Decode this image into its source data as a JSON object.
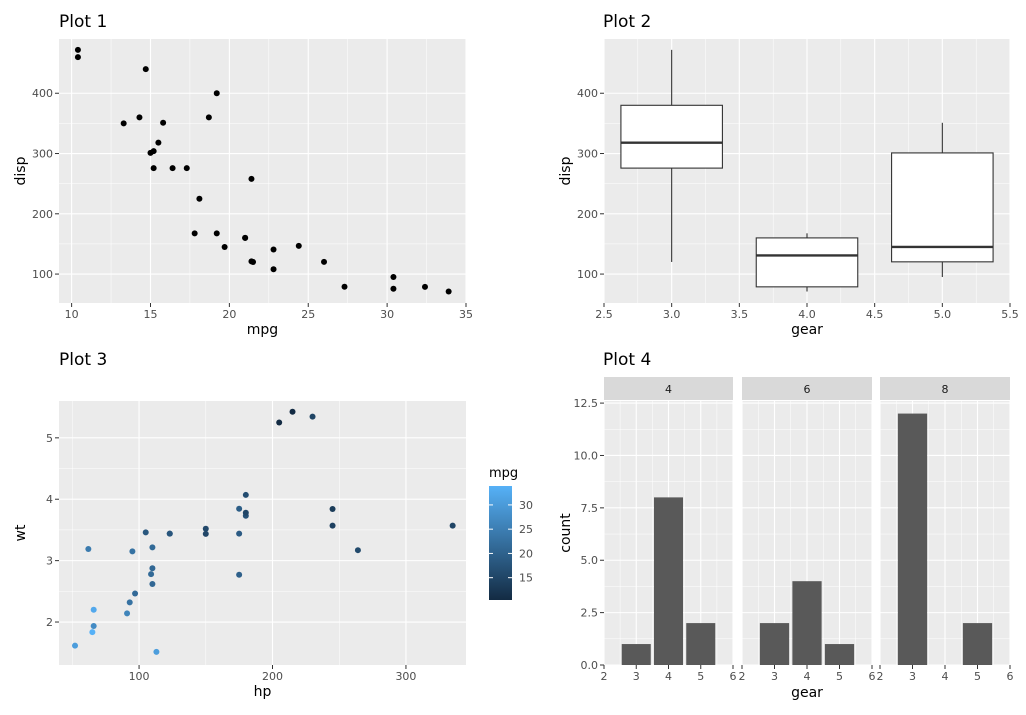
{
  "chart_data": [
    {
      "id": "plot1",
      "type": "scatter",
      "title": "Plot 1",
      "xlabel": "mpg",
      "ylabel": "disp",
      "xlim": [
        9.2,
        35.0
      ],
      "ylim": [
        52,
        490
      ],
      "xticks": [
        10,
        15,
        20,
        25,
        30,
        35
      ],
      "yticks": [
        100,
        200,
        300,
        400
      ],
      "grid": true,
      "points": [
        {
          "x": 21.0,
          "y": 160
        },
        {
          "x": 21.0,
          "y": 160
        },
        {
          "x": 22.8,
          "y": 108
        },
        {
          "x": 21.4,
          "y": 258
        },
        {
          "x": 18.7,
          "y": 360
        },
        {
          "x": 18.1,
          "y": 225
        },
        {
          "x": 14.3,
          "y": 360
        },
        {
          "x": 24.4,
          "y": 146.7
        },
        {
          "x": 22.8,
          "y": 140.8
        },
        {
          "x": 19.2,
          "y": 167.6
        },
        {
          "x": 17.8,
          "y": 167.6
        },
        {
          "x": 16.4,
          "y": 275.8
        },
        {
          "x": 17.3,
          "y": 275.8
        },
        {
          "x": 15.2,
          "y": 275.8
        },
        {
          "x": 10.4,
          "y": 472
        },
        {
          "x": 10.4,
          "y": 460
        },
        {
          "x": 14.7,
          "y": 440
        },
        {
          "x": 32.4,
          "y": 78.7
        },
        {
          "x": 30.4,
          "y": 75.7
        },
        {
          "x": 33.9,
          "y": 71.1
        },
        {
          "x": 21.5,
          "y": 120.1
        },
        {
          "x": 15.5,
          "y": 318
        },
        {
          "x": 15.2,
          "y": 304
        },
        {
          "x": 13.3,
          "y": 350
        },
        {
          "x": 19.2,
          "y": 400
        },
        {
          "x": 27.3,
          "y": 79
        },
        {
          "x": 26.0,
          "y": 120.3
        },
        {
          "x": 30.4,
          "y": 95.1
        },
        {
          "x": 15.8,
          "y": 351
        },
        {
          "x": 19.7,
          "y": 145
        },
        {
          "x": 15.0,
          "y": 301
        },
        {
          "x": 21.4,
          "y": 121
        }
      ]
    },
    {
      "id": "plot2",
      "type": "boxplot",
      "title": "Plot 2",
      "xlabel": "gear",
      "ylabel": "disp",
      "xlim": [
        2.5,
        5.5
      ],
      "ylim": [
        52,
        490
      ],
      "xticks": [
        2.5,
        3.0,
        3.5,
        4.0,
        4.5,
        5.0,
        5.5
      ],
      "yticks": [
        100,
        200,
        300,
        400
      ],
      "grid": true,
      "boxes": [
        {
          "x": 3.0,
          "min": 120.1,
          "q1": 275.8,
          "median": 318,
          "q3": 380,
          "max": 472
        },
        {
          "x": 4.0,
          "min": 71.1,
          "q1": 78.8,
          "median": 130.9,
          "q3": 160,
          "max": 167.6
        },
        {
          "x": 5.0,
          "min": 95.1,
          "q1": 120.3,
          "median": 145,
          "q3": 301,
          "max": 351
        }
      ]
    },
    {
      "id": "plot3",
      "type": "scatter",
      "title": "Plot 3",
      "xlabel": "hp",
      "ylabel": "wt",
      "xlim": [
        40,
        345
      ],
      "ylim": [
        1.3,
        5.6
      ],
      "xticks": [
        100,
        200,
        300
      ],
      "yticks": [
        2,
        3,
        4,
        5
      ],
      "grid": true,
      "legend": {
        "title": "mpg",
        "type": "colorbar",
        "range": [
          10.4,
          33.9
        ],
        "ticks": [
          15,
          20,
          25,
          30
        ],
        "low_color": "#132B43",
        "high_color": "#56B1F7",
        "position": "right"
      },
      "points": [
        {
          "x": 110,
          "y": 2.62,
          "c": 21.0
        },
        {
          "x": 110,
          "y": 2.875,
          "c": 21.0
        },
        {
          "x": 93,
          "y": 2.32,
          "c": 22.8
        },
        {
          "x": 110,
          "y": 3.215,
          "c": 21.4
        },
        {
          "x": 175,
          "y": 3.44,
          "c": 18.7
        },
        {
          "x": 105,
          "y": 3.46,
          "c": 18.1
        },
        {
          "x": 245,
          "y": 3.57,
          "c": 14.3
        },
        {
          "x": 62,
          "y": 3.19,
          "c": 24.4
        },
        {
          "x": 95,
          "y": 3.15,
          "c": 22.8
        },
        {
          "x": 123,
          "y": 3.44,
          "c": 19.2
        },
        {
          "x": 123,
          "y": 3.44,
          "c": 17.8
        },
        {
          "x": 180,
          "y": 4.07,
          "c": 16.4
        },
        {
          "x": 180,
          "y": 3.73,
          "c": 17.3
        },
        {
          "x": 180,
          "y": 3.78,
          "c": 15.2
        },
        {
          "x": 205,
          "y": 5.25,
          "c": 10.4
        },
        {
          "x": 215,
          "y": 5.424,
          "c": 10.4
        },
        {
          "x": 230,
          "y": 5.345,
          "c": 14.7
        },
        {
          "x": 66,
          "y": 2.2,
          "c": 32.4
        },
        {
          "x": 52,
          "y": 1.615,
          "c": 30.4
        },
        {
          "x": 65,
          "y": 1.835,
          "c": 33.9
        },
        {
          "x": 97,
          "y": 2.465,
          "c": 21.5
        },
        {
          "x": 150,
          "y": 3.52,
          "c": 15.5
        },
        {
          "x": 150,
          "y": 3.435,
          "c": 15.2
        },
        {
          "x": 245,
          "y": 3.84,
          "c": 13.3
        },
        {
          "x": 175,
          "y": 3.845,
          "c": 19.2
        },
        {
          "x": 66,
          "y": 1.935,
          "c": 27.3
        },
        {
          "x": 91,
          "y": 2.14,
          "c": 26.0
        },
        {
          "x": 113,
          "y": 1.513,
          "c": 30.4
        },
        {
          "x": 264,
          "y": 3.17,
          "c": 15.8
        },
        {
          "x": 175,
          "y": 2.77,
          "c": 19.7
        },
        {
          "x": 335,
          "y": 3.57,
          "c": 15.0
        },
        {
          "x": 109,
          "y": 2.78,
          "c": 21.4
        }
      ]
    },
    {
      "id": "plot4",
      "type": "bar",
      "title": "Plot 4",
      "xlabel": "gear",
      "ylabel": "count",
      "xlim": [
        2,
        6
      ],
      "ylim": [
        0,
        12.6
      ],
      "xticks": [
        2,
        3,
        4,
        5,
        6
      ],
      "ytick_labels": [
        "0.0",
        "2.5",
        "5.0",
        "7.5",
        "10.0",
        "12.5"
      ],
      "yticks": [
        0,
        2.5,
        5,
        7.5,
        10,
        12.5
      ],
      "grid": true,
      "bar_width": 0.9,
      "facets": [
        {
          "label": "4",
          "categories": [
            3,
            4,
            5
          ],
          "values": [
            1,
            8,
            2
          ]
        },
        {
          "label": "6",
          "categories": [
            3,
            4,
            5
          ],
          "values": [
            2,
            4,
            1
          ]
        },
        {
          "label": "8",
          "categories": [
            3,
            5
          ],
          "values": [
            12,
            2
          ]
        }
      ],
      "bar_color": "#595959"
    }
  ]
}
